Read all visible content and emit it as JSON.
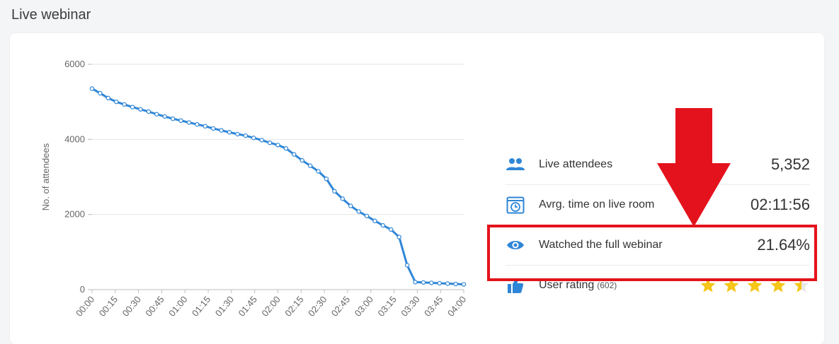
{
  "page": {
    "title": "Live webinar"
  },
  "colors": {
    "accent": "#2f86d6",
    "line": "#2f86d6",
    "star": "#f5c518",
    "annotation": "#e4121c"
  },
  "stats": {
    "live_attendees": {
      "icon": "people-icon",
      "label": "Live attendees",
      "value": "5,352"
    },
    "avg_time": {
      "icon": "calendar-clock-icon",
      "label": "Avrg. time on live room",
      "value": "02:11:56"
    },
    "watched_full": {
      "icon": "eye-icon",
      "label": "Watched the full webinar",
      "value": "21.64%"
    },
    "user_rating": {
      "icon": "thumbs-up-icon",
      "label": "User rating",
      "count": "(602)",
      "stars": 4.5,
      "max_stars": 5
    }
  },
  "annotations": {
    "arrow": "down-arrow-icon",
    "highlight": "user-rating"
  },
  "chart_data": {
    "type": "line",
    "xlabel": "",
    "ylabel": "No. of attendees",
    "ylim": [
      0,
      6000
    ],
    "yticks": [
      "0",
      "2000",
      "4000",
      "6000"
    ],
    "xticks": [
      "00:00",
      "00:15",
      "00:30",
      "00:45",
      "01:00",
      "01:15",
      "01:30",
      "01:45",
      "02:00",
      "02:15",
      "02:30",
      "02:45",
      "03:00",
      "03:15",
      "03:30",
      "03:45",
      "04:00"
    ],
    "grid": true,
    "series": [
      {
        "values": [
          5352,
          5230,
          5100,
          5000,
          4930,
          4860,
          4800,
          4740,
          4670,
          4610,
          4550,
          4500,
          4450,
          4400,
          4350,
          4290,
          4240,
          4190,
          4140,
          4100,
          4040,
          3980,
          3910,
          3850,
          3760,
          3600,
          3440,
          3300,
          3150,
          2950,
          2620,
          2420,
          2230,
          2080,
          1960,
          1830,
          1710,
          1600,
          1400,
          650,
          200,
          190,
          180,
          170,
          160,
          150,
          140
        ]
      }
    ]
  }
}
